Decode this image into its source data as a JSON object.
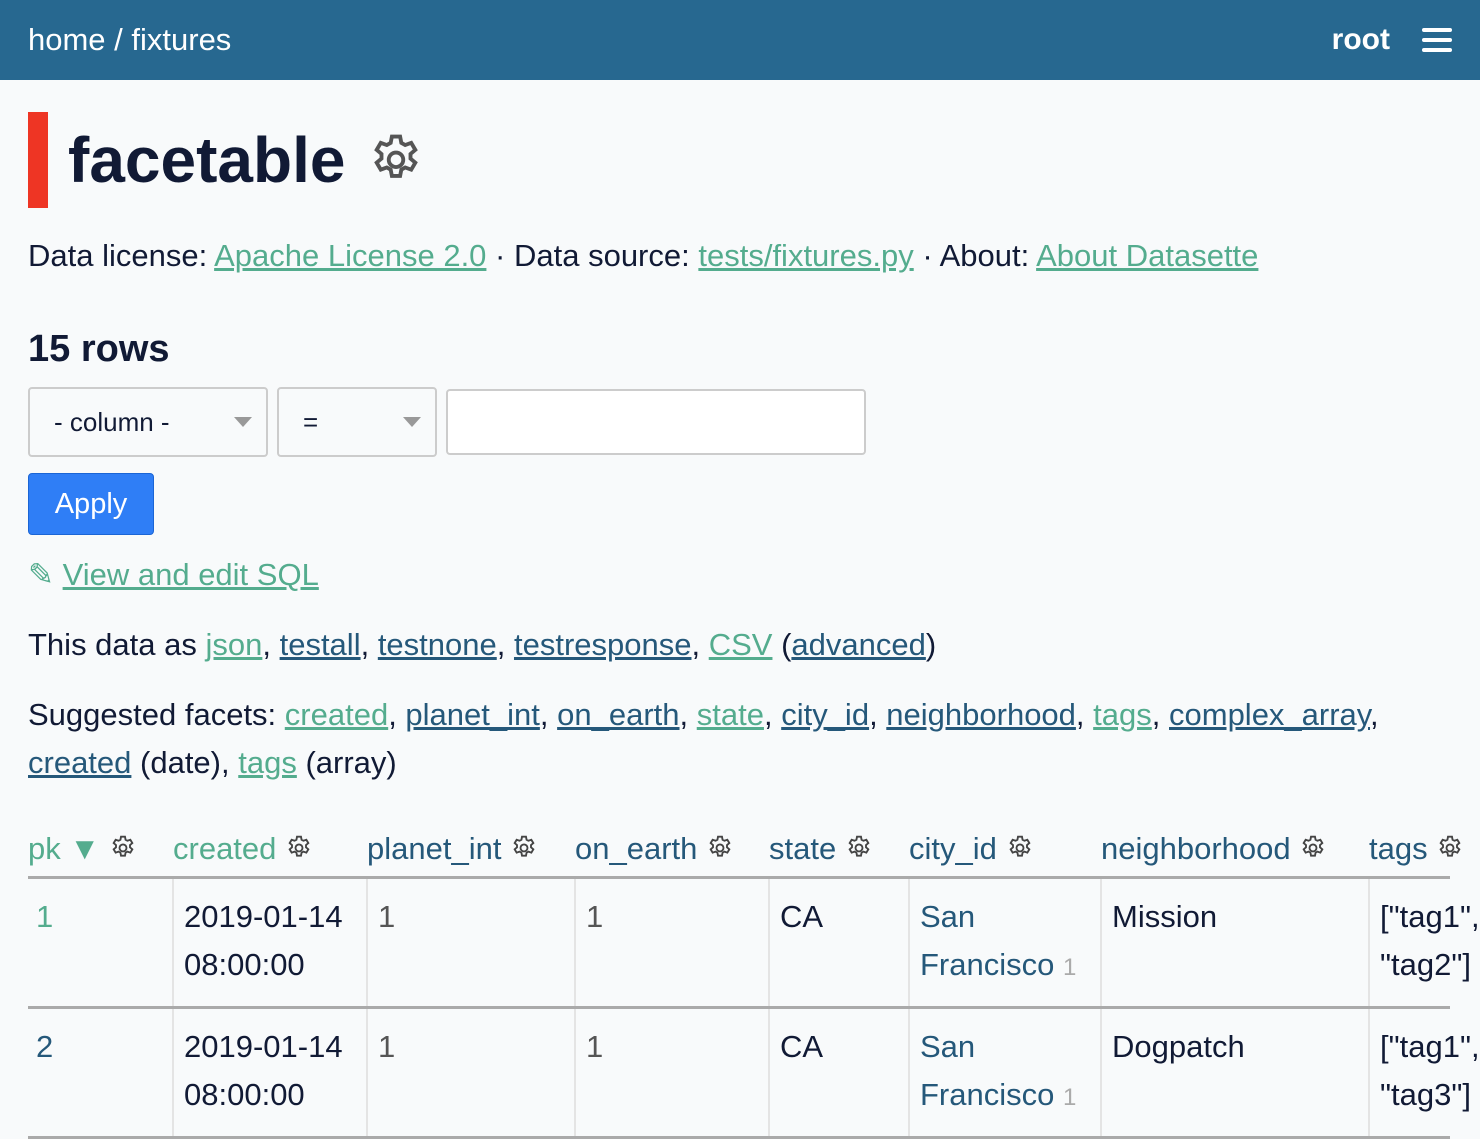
{
  "header": {
    "breadcrumb_home": "home",
    "breadcrumb_sep": " / ",
    "breadcrumb_db": "fixtures",
    "user": "root",
    "menu_icon": "hamburger-icon"
  },
  "page": {
    "title": "facetable",
    "accent_color": "#ee3524",
    "header_color": "#276890"
  },
  "meta": {
    "license_label": "Data license: ",
    "license": "Apache License 2.0",
    "source_label": "Data source: ",
    "source": "tests/fixtures.py",
    "about_label": "About: ",
    "about": "About Datasette",
    "sep": " · "
  },
  "count": "15 rows",
  "filters": {
    "column": "- column -",
    "op": "=",
    "value": "",
    "apply": "Apply"
  },
  "sql_link": "View and edit SQL",
  "formats": {
    "label": "This data as ",
    "json": "json",
    "testall": "testall",
    "testnone": "testnone",
    "testresponse": "testresponse",
    "csv": "CSV",
    "advanced": "advanced"
  },
  "facets": {
    "label": "Suggested facets: ",
    "items": [
      "created",
      "planet_int",
      "on_earth",
      "state",
      "city_id",
      "neighborhood",
      "tags",
      "complex_array"
    ],
    "date": "created",
    "date_suffix": " (date)",
    "array": "tags",
    "array_suffix": " (array)"
  },
  "table": {
    "columns": [
      "pk",
      "created",
      "planet_int",
      "on_earth",
      "state",
      "city_id",
      "neighborhood",
      "tags"
    ],
    "sort_indicator": "▼",
    "rows": [
      {
        "pk": "1",
        "created": "2019-01-14 08:00:00",
        "planet_int": "1",
        "on_earth": "1",
        "state": "CA",
        "city": "San Francisco",
        "city_id": "1",
        "neighborhood": "Mission",
        "tags": "[\"tag1\",\n\"tag2\"]"
      },
      {
        "pk": "2",
        "created": "2019-01-14 08:00:00",
        "planet_int": "1",
        "on_earth": "1",
        "state": "CA",
        "city": "San Francisco",
        "city_id": "1",
        "neighborhood": "Dogpatch",
        "tags": "[\"tag1\",\n\"tag3\"]"
      }
    ]
  }
}
